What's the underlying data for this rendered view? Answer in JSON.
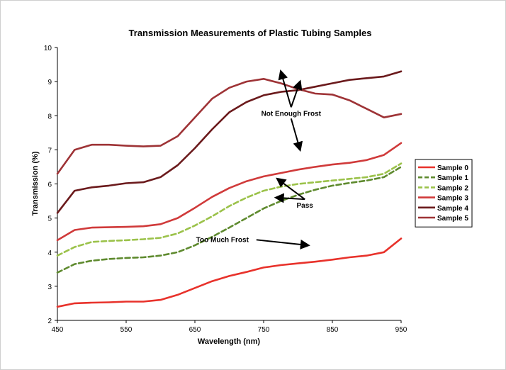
{
  "chart_data": {
    "type": "line",
    "title": "Transmission Measurements of Plastic Tubing Samples",
    "xlabel": "Wavelength (nm)",
    "ylabel": "Transmission (%)",
    "xlim": [
      450,
      950
    ],
    "ylim": [
      2,
      10
    ],
    "xticks": [
      450,
      550,
      650,
      750,
      850,
      950
    ],
    "yticks": [
      2,
      3,
      4,
      5,
      6,
      7,
      8,
      9,
      10
    ],
    "grid": false,
    "legend_position": "right",
    "x": [
      450,
      475,
      500,
      525,
      550,
      575,
      600,
      625,
      650,
      675,
      700,
      725,
      750,
      775,
      800,
      825,
      850,
      875,
      900,
      925,
      950
    ],
    "series": [
      {
        "name": "Sample 0",
        "color": "#e8322b",
        "dash": "solid",
        "values": [
          2.4,
          2.5,
          2.52,
          2.53,
          2.55,
          2.55,
          2.6,
          2.75,
          2.95,
          3.15,
          3.3,
          3.42,
          3.55,
          3.62,
          3.67,
          3.72,
          3.78,
          3.85,
          3.9,
          4.0,
          4.4
        ]
      },
      {
        "name": "Sample 1",
        "color": "#5e8a2e",
        "dash": "dashed",
        "values": [
          3.4,
          3.65,
          3.75,
          3.8,
          3.83,
          3.85,
          3.9,
          4.0,
          4.2,
          4.45,
          4.72,
          5.0,
          5.28,
          5.5,
          5.68,
          5.83,
          5.95,
          6.03,
          6.1,
          6.2,
          6.5
        ]
      },
      {
        "name": "Sample 2",
        "color": "#9bc24a",
        "dash": "dashed",
        "values": [
          3.9,
          4.15,
          4.3,
          4.33,
          4.35,
          4.38,
          4.42,
          4.55,
          4.78,
          5.05,
          5.35,
          5.6,
          5.8,
          5.92,
          6.0,
          6.05,
          6.1,
          6.15,
          6.2,
          6.3,
          6.6
        ]
      },
      {
        "name": "Sample 3",
        "color": "#d03a3a",
        "dash": "solid",
        "values": [
          4.35,
          4.65,
          4.72,
          4.73,
          4.74,
          4.76,
          4.82,
          5.0,
          5.3,
          5.62,
          5.88,
          6.08,
          6.22,
          6.32,
          6.42,
          6.5,
          6.57,
          6.62,
          6.7,
          6.85,
          7.2
        ]
      },
      {
        "name": "Sample 4",
        "color": "#6b1a1c",
        "dash": "solid",
        "values": [
          5.15,
          5.8,
          5.9,
          5.95,
          6.02,
          6.05,
          6.2,
          6.55,
          7.05,
          7.6,
          8.1,
          8.4,
          8.6,
          8.7,
          8.75,
          8.85,
          8.95,
          9.05,
          9.1,
          9.15,
          9.3
        ]
      },
      {
        "name": "Sample 5",
        "color": "#9e3336",
        "dash": "solid",
        "values": [
          6.3,
          7.0,
          7.15,
          7.15,
          7.12,
          7.1,
          7.12,
          7.4,
          7.95,
          8.5,
          8.82,
          9.0,
          9.08,
          8.95,
          8.78,
          8.65,
          8.62,
          8.45,
          8.2,
          7.95,
          8.05
        ]
      }
    ],
    "annotations": [
      {
        "text": "Not Enough Frost",
        "x": 790,
        "y": 8.0,
        "arrows": [
          [
            775,
            9.3
          ],
          [
            803,
            9.0
          ],
          [
            803,
            7.0
          ]
        ]
      },
      {
        "text": "Pass",
        "x": 810,
        "y": 5.3,
        "arrows": [
          [
            770,
            6.15
          ],
          [
            768,
            5.6
          ]
        ]
      },
      {
        "text": "Too Much Frost",
        "x": 690,
        "y": 4.3,
        "arrows": [
          [
            815,
            4.2
          ]
        ]
      }
    ]
  }
}
